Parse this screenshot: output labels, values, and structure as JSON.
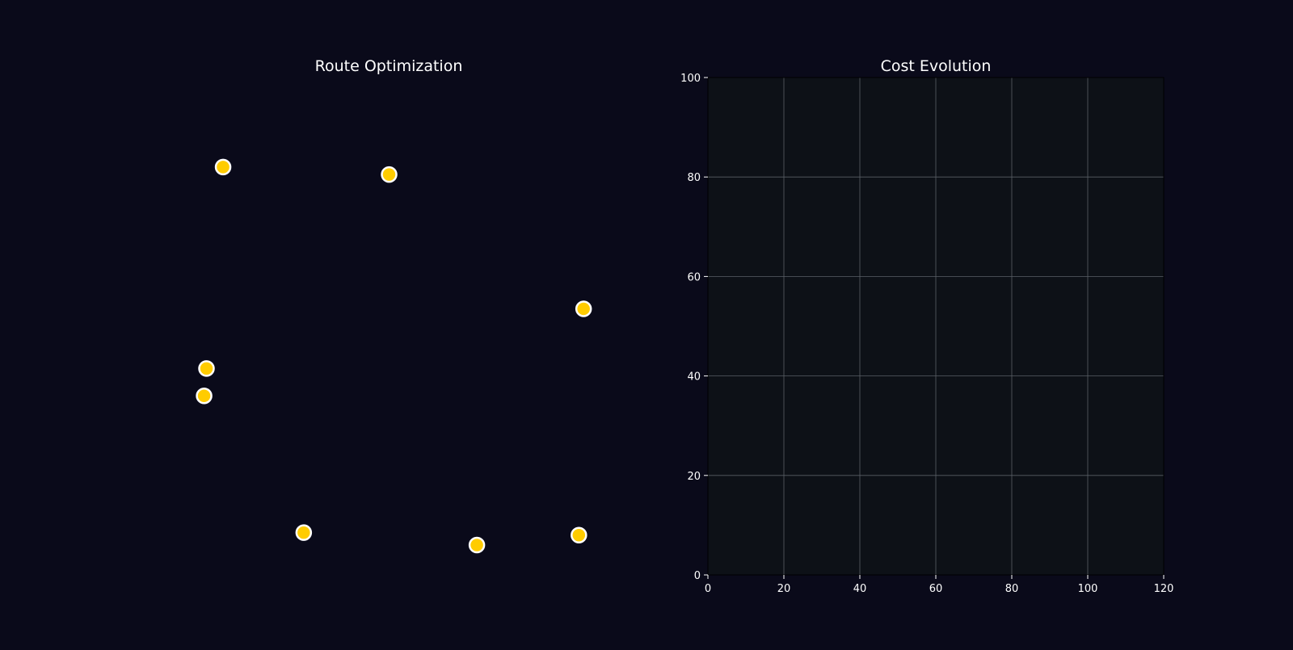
{
  "figure": {
    "background": "#0a0a1a"
  },
  "chart_data": [
    {
      "type": "scatter",
      "title": "Route Optimization",
      "axis_visible": false,
      "xlim": [
        0,
        100
      ],
      "ylim": [
        0,
        100
      ],
      "marker_color": "#ffcc00",
      "marker_edge_color": "#ffffff",
      "series": [
        {
          "points": [
            {
              "x": 15,
              "y": 82
            },
            {
              "x": 50,
              "y": 80.5
            },
            {
              "x": 91,
              "y": 53.5
            },
            {
              "x": 11.5,
              "y": 41.5
            },
            {
              "x": 11,
              "y": 36
            },
            {
              "x": 32,
              "y": 8.5
            },
            {
              "x": 68.5,
              "y": 6
            },
            {
              "x": 90,
              "y": 8
            }
          ]
        }
      ]
    },
    {
      "type": "line",
      "title": "Cost Evolution",
      "plot_background": "#0d1117",
      "grid": true,
      "grid_color": "#5a5f66",
      "xlim": [
        0,
        120
      ],
      "ylim": [
        0,
        100
      ],
      "xticks": [
        "0",
        "20",
        "40",
        "60",
        "80",
        "100",
        "120"
      ],
      "yticks": [
        "0",
        "20",
        "40",
        "60",
        "80",
        "100"
      ],
      "series": []
    }
  ]
}
